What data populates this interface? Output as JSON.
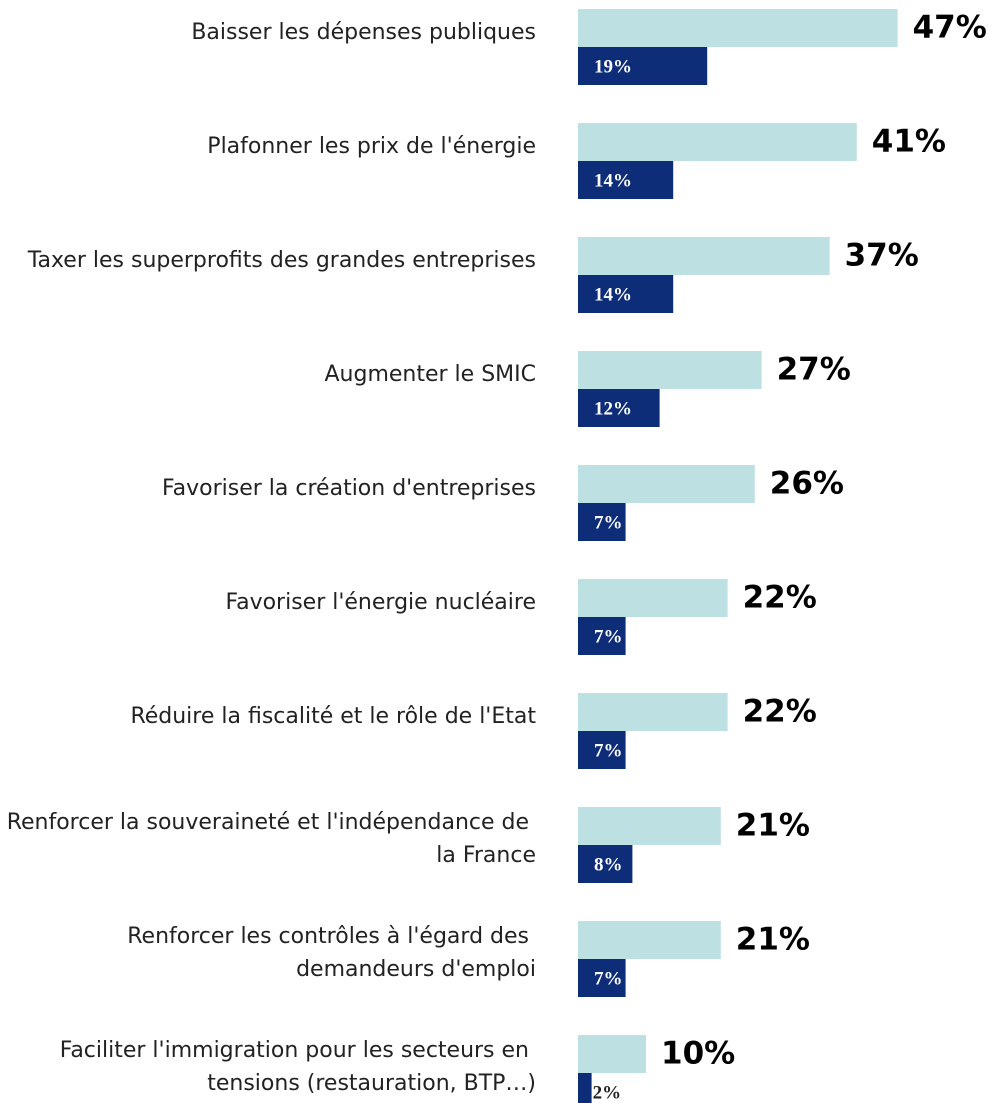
{
  "chart_data": {
    "type": "bar",
    "orientation": "horizontal",
    "categories": [
      "Baisser les dépenses publiques",
      "Plafonner les prix de l'énergie",
      "Taxer les superprofits des grandes entreprises",
      "Augmenter le SMIC",
      "Favoriser la création d'entreprises",
      "Favoriser l'énergie nucléaire",
      "Réduire la fiscalité et le rôle de l'Etat",
      "Renforcer la souveraineté et l'indépendance de la France",
      "Renforcer les contrôles à l'égard des demandeurs d'emploi",
      "Faciliter l'immigration pour les secteurs en tensions (restauration, BTP…)"
    ],
    "series": [
      {
        "color": "#bde0e3",
        "values": [
          47,
          41,
          37,
          27,
          26,
          22,
          22,
          21,
          21,
          10
        ],
        "value_labels": [
          "47%",
          "41%",
          "37%",
          "27%",
          "26%",
          "22%",
          "22%",
          "21%",
          "21%",
          "10%"
        ]
      },
      {
        "color": "#0d2d78",
        "values": [
          19,
          14,
          14,
          12,
          7,
          7,
          7,
          8,
          7,
          2
        ],
        "value_labels": [
          "19%",
          "14%",
          "14%",
          "12%",
          "7%",
          "7%",
          "7%",
          "8%",
          "7%",
          "2%"
        ]
      }
    ],
    "xlim": [
      0,
      60
    ]
  }
}
